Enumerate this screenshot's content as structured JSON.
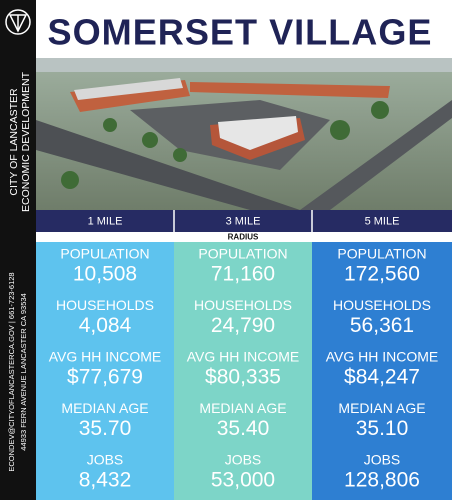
{
  "header": {
    "title": "SOMERSET VILLAGE"
  },
  "sidebar": {
    "org": [
      "CITY OF LANCASTER",
      "ECONOMIC DEVELOPMENT"
    ],
    "contact": [
      "ECONDEV@CITYOFLANCASTERCA.GOV | 661-723-6128",
      "44933 FERN AVENUE LANCASTER CA 93534"
    ]
  },
  "radius_label": "RADIUS",
  "columns": [
    {
      "radius": "1 MILE",
      "stats": [
        {
          "label": "POPULATION",
          "value": "10,508"
        },
        {
          "label": "HOUSEHOLDS",
          "value": "4,084"
        },
        {
          "label": "AVG HH INCOME",
          "value": "$77,679"
        },
        {
          "label": "MEDIAN AGE",
          "value": "35.70"
        },
        {
          "label": "JOBS",
          "value": "8,432"
        }
      ]
    },
    {
      "radius": "3 MILE",
      "stats": [
        {
          "label": "POPULATION",
          "value": "71,160"
        },
        {
          "label": "HOUSEHOLDS",
          "value": "24,790"
        },
        {
          "label": "AVG HH INCOME",
          "value": "$80,335"
        },
        {
          "label": "MEDIAN AGE",
          "value": "35.40"
        },
        {
          "label": "JOBS",
          "value": "53,000"
        }
      ]
    },
    {
      "radius": "5 MILE",
      "stats": [
        {
          "label": "POPULATION",
          "value": "172,560"
        },
        {
          "label": "HOUSEHOLDS",
          "value": "56,361"
        },
        {
          "label": "AVG HH INCOME",
          "value": "$84,247"
        },
        {
          "label": "MEDIAN AGE",
          "value": "35.10"
        },
        {
          "label": "JOBS",
          "value": "128,806"
        }
      ]
    }
  ]
}
